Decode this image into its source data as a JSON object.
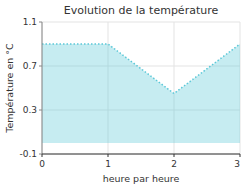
{
  "chart_data": {
    "type": "area",
    "title": "Evolution de la température",
    "xlabel": "heure par heure",
    "ylabel": "Température en °C",
    "x": [
      0,
      1,
      2,
      3
    ],
    "values": [
      0.9,
      0.9,
      0.45,
      0.9
    ],
    "xlim": [
      0,
      3
    ],
    "ylim": [
      -0.1,
      1.1
    ],
    "xticks": [
      0,
      1,
      2,
      3
    ],
    "yticks": [
      -0.1,
      0.3,
      0.7,
      1.1
    ],
    "color": "#5bc8d8",
    "line_style": "dotted",
    "grid": true
  }
}
